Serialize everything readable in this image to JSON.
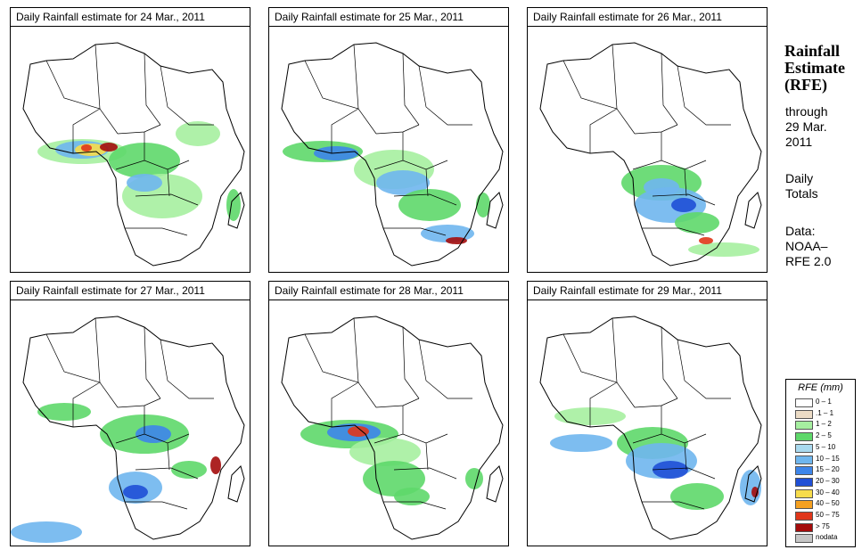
{
  "panels": [
    {
      "title": "Daily Rainfall estimate for  24 Mar., 2011"
    },
    {
      "title": "Daily Rainfall estimate for  25 Mar., 2011"
    },
    {
      "title": "Daily Rainfall estimate for  26 Mar., 2011"
    },
    {
      "title": "Daily Rainfall estimate for  27 Mar., 2011"
    },
    {
      "title": "Daily Rainfall estimate for  28 Mar., 2011"
    },
    {
      "title": "Daily Rainfall estimate for  29 Mar., 2011"
    }
  ],
  "side": {
    "title_line1": "Rainfall",
    "title_line2": "Estimate",
    "title_line3": "(RFE)",
    "through_label": "through",
    "date_line1": "29 Mar.",
    "date_line2": "2011",
    "totals_line1": "Daily",
    "totals_line2": "Totals",
    "data_label": "Data:",
    "source_line1": "NOAA–",
    "source_line2": "RFE 2.0"
  },
  "legend": {
    "title": "RFE (mm)",
    "items": [
      {
        "label": "0 – 1",
        "color": "#ffffff"
      },
      {
        "label": ".1 – 1",
        "color": "#ecdcc6"
      },
      {
        "label": "1 – 2",
        "color": "#a6efa0"
      },
      {
        "label": "2 – 5",
        "color": "#5ed86a"
      },
      {
        "label": "5 – 10",
        "color": "#a9d9ee"
      },
      {
        "label": "10 – 15",
        "color": "#6fb6ee"
      },
      {
        "label": "15 – 20",
        "color": "#3d85ea"
      },
      {
        "label": "20 – 30",
        "color": "#1f4fd6"
      },
      {
        "label": "30 – 40",
        "color": "#f7dc4b"
      },
      {
        "label": "40 – 50",
        "color": "#f5a020"
      },
      {
        "label": "50 – 75",
        "color": "#e0361a"
      },
      {
        "label": "> 75",
        "color": "#a40c0c"
      },
      {
        "label": "nodata",
        "color": "#c6c6c6"
      }
    ]
  }
}
